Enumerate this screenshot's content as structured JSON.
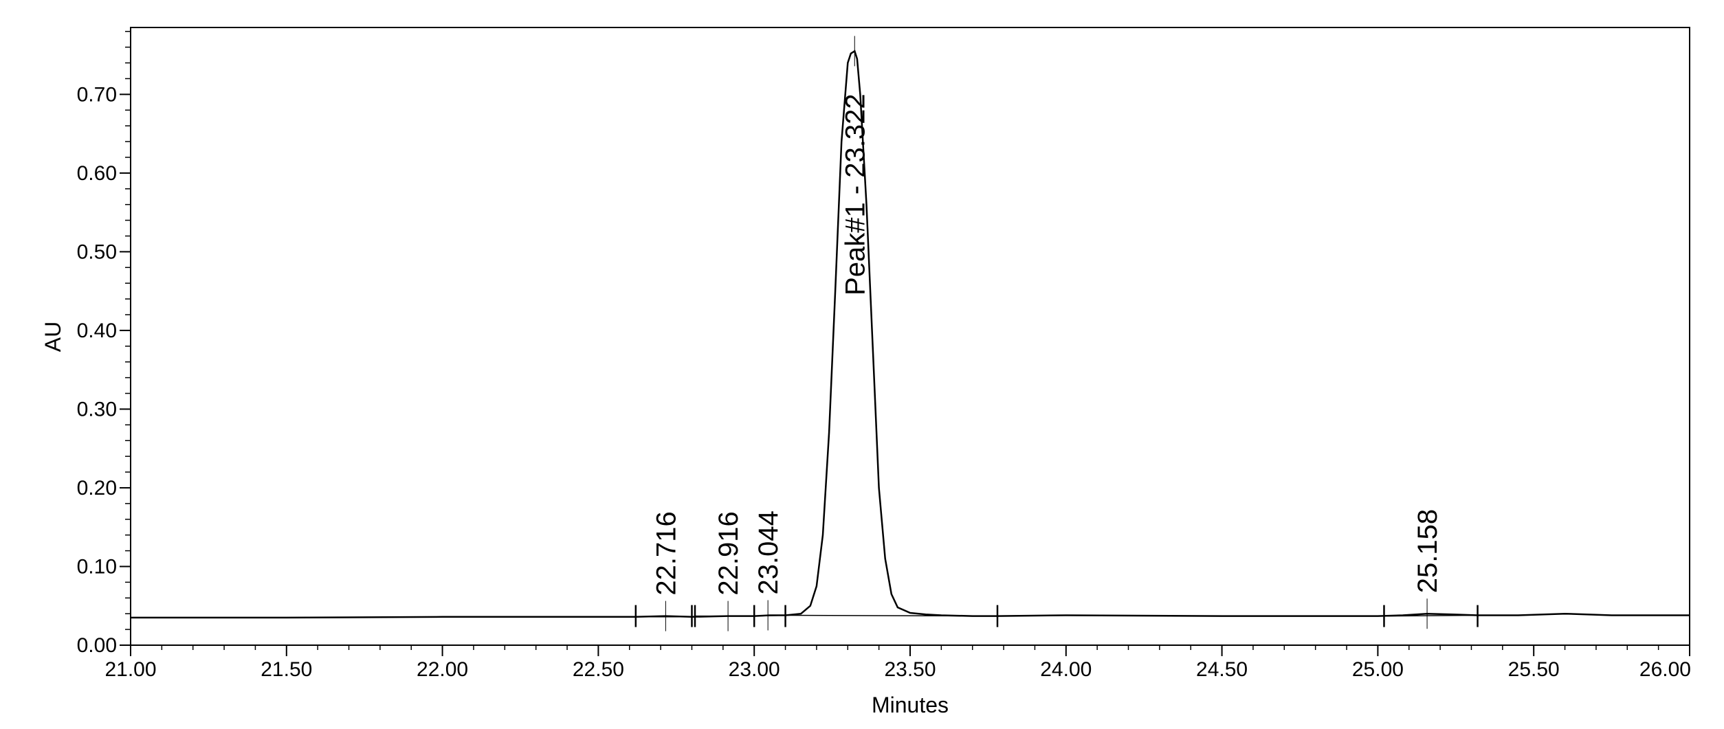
{
  "chart_data": {
    "type": "line",
    "title": "",
    "xlabel": "Minutes",
    "ylabel": "AU",
    "xlim": [
      21.0,
      26.0
    ],
    "ylim": [
      0.0,
      0.785
    ],
    "x_ticks": [
      21.0,
      21.5,
      22.0,
      22.5,
      23.0,
      23.5,
      24.0,
      24.5,
      25.0,
      25.5,
      26.0
    ],
    "x_tick_labels": [
      "21.00",
      "21.50",
      "22.00",
      "22.50",
      "23.00",
      "23.50",
      "24.00",
      "24.50",
      "25.00",
      "25.50",
      "26.00"
    ],
    "y_ticks": [
      0.0,
      0.1,
      0.2,
      0.3,
      0.4,
      0.5,
      0.6,
      0.7
    ],
    "y_tick_labels": [
      "0.00",
      "0.10",
      "0.20",
      "0.30",
      "0.40",
      "0.50",
      "0.60",
      "0.70"
    ],
    "x_minor_step": 0.1,
    "y_minor_step": 0.02,
    "grid": false,
    "legend": "none",
    "line_color": "#000000",
    "series": [
      {
        "x": [
          21.0,
          21.5,
          22.0,
          22.5,
          22.62,
          22.716,
          22.8,
          22.916,
          23.0,
          23.05,
          23.1,
          23.15,
          23.18,
          23.2,
          23.22,
          23.24,
          23.26,
          23.28,
          23.3,
          23.31,
          23.322,
          23.33,
          23.34,
          23.36,
          23.38,
          23.4,
          23.42,
          23.44,
          23.46,
          23.5,
          23.55,
          23.6,
          23.7,
          23.78,
          24.0,
          24.5,
          25.0,
          25.08,
          25.158,
          25.24,
          25.32,
          25.45,
          25.6,
          25.75,
          26.0
        ],
        "y": [
          0.035,
          0.035,
          0.036,
          0.036,
          0.036,
          0.037,
          0.036,
          0.037,
          0.037,
          0.038,
          0.038,
          0.04,
          0.05,
          0.075,
          0.14,
          0.27,
          0.45,
          0.64,
          0.74,
          0.752,
          0.755,
          0.745,
          0.7,
          0.56,
          0.38,
          0.2,
          0.11,
          0.065,
          0.048,
          0.041,
          0.039,
          0.038,
          0.037,
          0.037,
          0.038,
          0.037,
          0.037,
          0.038,
          0.04,
          0.039,
          0.038,
          0.038,
          0.04,
          0.038,
          0.038
        ]
      }
    ],
    "baseline_segments": [
      {
        "x": [
          22.62,
          22.8
        ],
        "y": [
          0.036,
          0.036
        ]
      },
      {
        "x": [
          22.81,
          23.0
        ],
        "y": [
          0.037,
          0.037
        ]
      },
      {
        "x": [
          23.0,
          23.1
        ],
        "y": [
          0.037,
          0.038
        ]
      },
      {
        "x": [
          23.1,
          23.78
        ],
        "y": [
          0.038,
          0.037
        ]
      },
      {
        "x": [
          25.02,
          25.32
        ],
        "y": [
          0.037,
          0.038
        ]
      }
    ],
    "event_ticks": [
      22.62,
      22.8,
      22.81,
      23.0,
      23.1,
      23.78,
      25.02,
      25.32
    ],
    "peak_markers": [
      {
        "x": 22.716,
        "y": 0.037,
        "label": "22.716"
      },
      {
        "x": 22.916,
        "y": 0.037,
        "label": "22.916"
      },
      {
        "x": 23.044,
        "y": 0.038,
        "label": "23.044"
      },
      {
        "x": 23.322,
        "y": 0.755,
        "label": "Peak#1 - 23.322"
      },
      {
        "x": 25.158,
        "y": 0.04,
        "label": "25.158"
      }
    ]
  }
}
